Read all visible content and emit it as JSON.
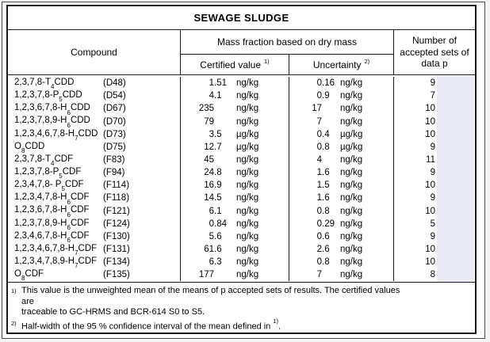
{
  "title": "SEWAGE SLUDGE",
  "header": {
    "compound": "Compound",
    "mass_fraction": "Mass fraction based on dry mass",
    "certified": {
      "label": "Certified value",
      "sup": "1)"
    },
    "uncertainty": {
      "label": "Uncertainty",
      "sup": "2)"
    },
    "accepted_sets": "Number of accepted sets of data p"
  },
  "rows": [
    {
      "name_pre": "2,3,7,8-T",
      "name_sub": "4",
      "name_post": "CDD",
      "code": "(D48)",
      "cert": "1.51",
      "cert_unit": "ng/kg",
      "unc": "0.16",
      "unc_unit": "ng/kg",
      "p": "9"
    },
    {
      "name_pre": "1,2,3,7,8-P",
      "name_sub": "5",
      "name_post": "CDD",
      "code": "(D54)",
      "cert": "4.1",
      "cert_unit": "ng/kg",
      "unc": "0.9",
      "unc_unit": "ng/kg",
      "p": "7"
    },
    {
      "name_pre": "1,2,3,6,7,8-H",
      "name_sub": "6",
      "name_post": "CDD",
      "code": "(D67)",
      "cert": "235",
      "cert_unit": "ng/kg",
      "unc": "17",
      "unc_unit": "ng/kg",
      "p": "10"
    },
    {
      "name_pre": "1,2,3,7,8,9-H",
      "name_sub": "6",
      "name_post": "CDD",
      "code": "(D70)",
      "cert": "79",
      "cert_unit": "ng/kg",
      "unc": "7",
      "unc_unit": "ng/kg",
      "p": "10"
    },
    {
      "name_pre": "1,2,3,4,6,7,8-H",
      "name_sub": "7",
      "name_post": "CDD",
      "code": "(D73)",
      "cert": "3.5",
      "cert_unit": "µg/kg",
      "unc": "0.4",
      "unc_unit": "µg/kg",
      "p": "10"
    },
    {
      "name_pre": "O",
      "name_sub": "8",
      "name_post": "CDD",
      "code": "(D75)",
      "cert": "12.7",
      "cert_unit": "µg/kg",
      "unc": "0.8",
      "unc_unit": "µg/kg",
      "p": "9"
    },
    {
      "name_pre": "2,3,7,8-T",
      "name_sub": "4",
      "name_post": "CDF",
      "code": "(F83)",
      "cert": "45",
      "cert_unit": "ng/kg",
      "unc": "4",
      "unc_unit": "ng/kg",
      "p": "11"
    },
    {
      "name_pre": "1,2,3,7,8-P",
      "name_sub": "5",
      "name_post": "CDF",
      "code": "(F94)",
      "cert": "24.8",
      "cert_unit": "ng/kg",
      "unc": "1.6",
      "unc_unit": "ng/kg",
      "p": "9"
    },
    {
      "name_pre": "2,3,4,7,8- P",
      "name_sub": "5",
      "name_post": "CDF",
      "code": "(F114)",
      "cert": "16.9",
      "cert_unit": "ng/kg",
      "unc": "1.5",
      "unc_unit": "ng/kg",
      "p": "10"
    },
    {
      "name_pre": "1,2,3,4,7,8-H",
      "name_sub": "6",
      "name_post": "CDF",
      "code": "(F118)",
      "cert": "14.5",
      "cert_unit": "ng/kg",
      "unc": "1.6",
      "unc_unit": "ng/kg",
      "p": "9"
    },
    {
      "name_pre": "1,2,3,6,7,8-H",
      "name_sub": "6",
      "name_post": "CDF",
      "code": "(F121)",
      "cert": "6.1",
      "cert_unit": "ng/kg",
      "unc": "0.8",
      "unc_unit": "ng/kg",
      "p": "10"
    },
    {
      "name_pre": "1,2,3,7,8,9-H",
      "name_sub": "6",
      "name_post": "CDF",
      "code": "(F124)",
      "cert": "0.84",
      "cert_unit": "ng/kg",
      "unc": "0.29",
      "unc_unit": "ng/kg",
      "p": "5"
    },
    {
      "name_pre": "2,3,4,6,7,8-H",
      "name_sub": "6",
      "name_post": "CDF",
      "code": "(F130)",
      "cert": "5.6",
      "cert_unit": "ng/kg",
      "unc": "0.6",
      "unc_unit": "ng/kg",
      "p": "9"
    },
    {
      "name_pre": "1,2,3,4,6,7,8-H",
      "name_sub": "7",
      "name_post": "CDF",
      "code": "(F131)",
      "cert": "61.6",
      "cert_unit": "ng/kg",
      "unc": "2.6",
      "unc_unit": "ng/kg",
      "p": "10"
    },
    {
      "name_pre": "1,2,3,4,7,8,9-H",
      "name_sub": "7",
      "name_post": "CDF",
      "code": "(F134)",
      "cert": "6.3",
      "cert_unit": "ng/kg",
      "unc": "0.8",
      "unc_unit": "ng/kg",
      "p": "10"
    },
    {
      "name_pre": "O",
      "name_sub": "8",
      "name_post": "CDF",
      "code": "(F135)",
      "cert": "177",
      "cert_unit": "ng/kg",
      "unc": "7",
      "unc_unit": "ng/kg",
      "p": "8"
    }
  ],
  "footnotes": [
    {
      "marker": "1)",
      "lines": [
        "This value is the unweighted mean of the means of p accepted sets of results. The certified values are",
        "traceable to GC-HRMS and BCR-614 S0 to S5."
      ]
    },
    {
      "marker": "2)",
      "lines": [
        "Half-width of the 95 % confidence interval of the mean defined in "
      ],
      "sup_ref": "1)",
      "tail": "."
    }
  ],
  "colors": {
    "highlight": "#e9eaf6",
    "table_border": "#1b1b1b",
    "frame_border": "#4a4a4a",
    "page_background": "#f4f4f4"
  }
}
